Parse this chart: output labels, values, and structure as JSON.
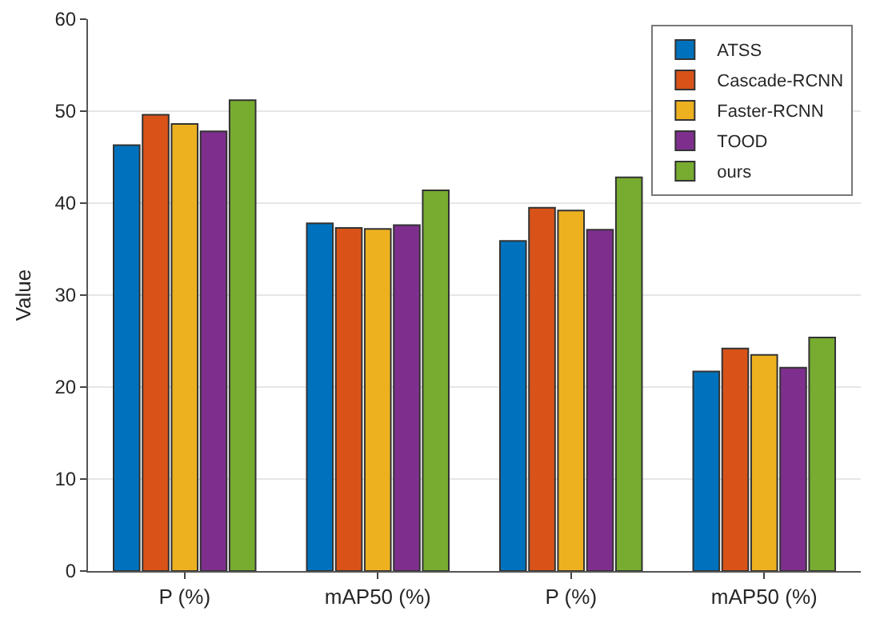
{
  "chart_data": {
    "type": "bar",
    "ylabel": "Value",
    "categories": [
      "P (%)",
      "mAP50 (%)",
      "P (%)",
      "mAP50 (%)"
    ],
    "series": [
      {
        "name": "ATSS",
        "color": "#0072bd",
        "values": [
          46.3,
          37.8,
          35.9,
          21.7
        ]
      },
      {
        "name": "Cascade-RCNN",
        "color": "#d95319",
        "values": [
          49.6,
          37.3,
          39.5,
          24.2
        ]
      },
      {
        "name": "Faster-RCNN",
        "color": "#edb120",
        "values": [
          48.6,
          37.2,
          39.2,
          23.5
        ]
      },
      {
        "name": "TOOD",
        "color": "#7e2f8e",
        "values": [
          47.8,
          37.6,
          37.1,
          22.1
        ]
      },
      {
        "name": "ours",
        "color": "#77ac30",
        "values": [
          51.2,
          41.4,
          42.8,
          25.4
        ]
      }
    ],
    "ylim": [
      0,
      60
    ],
    "yticks": [
      0,
      10,
      20,
      30,
      40,
      50,
      60
    ],
    "grid": "y",
    "legend": "top right"
  }
}
